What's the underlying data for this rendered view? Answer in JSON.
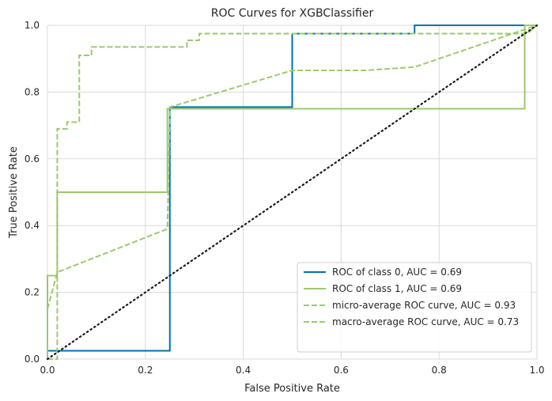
{
  "chart_data": {
    "type": "line",
    "title": "ROC Curves for XGBClassifier",
    "xlabel": "False Positive Rate",
    "ylabel": "True Positive Rate",
    "xlim": [
      0,
      1
    ],
    "ylim": [
      0,
      1
    ],
    "xticks": [
      "0.0",
      "0.2",
      "0.4",
      "0.6",
      "0.8",
      "1.0"
    ],
    "yticks": [
      "0.0",
      "0.2",
      "0.4",
      "0.6",
      "0.8",
      "1.0"
    ],
    "grid": true,
    "legend_position": "lower-right",
    "series": [
      {
        "name": "ROC of class 0, AUC = 0.69",
        "color": "#0072b2",
        "dash": "solid",
        "x": [
          0.0,
          0.0,
          0.25,
          0.25,
          0.5,
          0.5,
          0.75,
          0.75,
          1.0
        ],
        "y": [
          0.0,
          0.025,
          0.025,
          0.755,
          0.755,
          0.975,
          0.975,
          1.0,
          1.0
        ]
      },
      {
        "name": "ROC of class 1, AUC = 0.69",
        "color": "#9dc96e",
        "dash": "solid",
        "x": [
          0.0,
          0.0,
          0.02,
          0.02,
          0.245,
          0.245,
          0.975,
          0.975,
          1.0
        ],
        "y": [
          0.0,
          0.25,
          0.25,
          0.5,
          0.5,
          0.75,
          0.75,
          1.0,
          1.0
        ]
      },
      {
        "name": "micro-average ROC curve, AUC = 0.93",
        "color": "#9dc96e",
        "dash": "dashed",
        "x": [
          0.0,
          0.02,
          0.02,
          0.04,
          0.04,
          0.065,
          0.065,
          0.09,
          0.09,
          0.285,
          0.285,
          0.31,
          0.31,
          0.98,
          1.0
        ],
        "y": [
          0.0,
          0.0,
          0.69,
          0.69,
          0.71,
          0.71,
          0.91,
          0.91,
          0.935,
          0.935,
          0.955,
          0.955,
          0.975,
          0.975,
          1.0
        ]
      },
      {
        "name": "macro-average ROC curve, AUC = 0.73",
        "color": "#9dc96e",
        "dash": "dashed",
        "x": [
          0.0,
          0.02,
          0.245,
          0.25,
          0.5,
          0.65,
          0.75,
          1.0
        ],
        "y": [
          0.15,
          0.26,
          0.39,
          0.755,
          0.865,
          0.865,
          0.875,
          1.0
        ]
      },
      {
        "name": "",
        "color": "#1a1a1a",
        "dash": "dotted",
        "x": [
          0,
          1
        ],
        "y": [
          0,
          1
        ]
      }
    ]
  }
}
